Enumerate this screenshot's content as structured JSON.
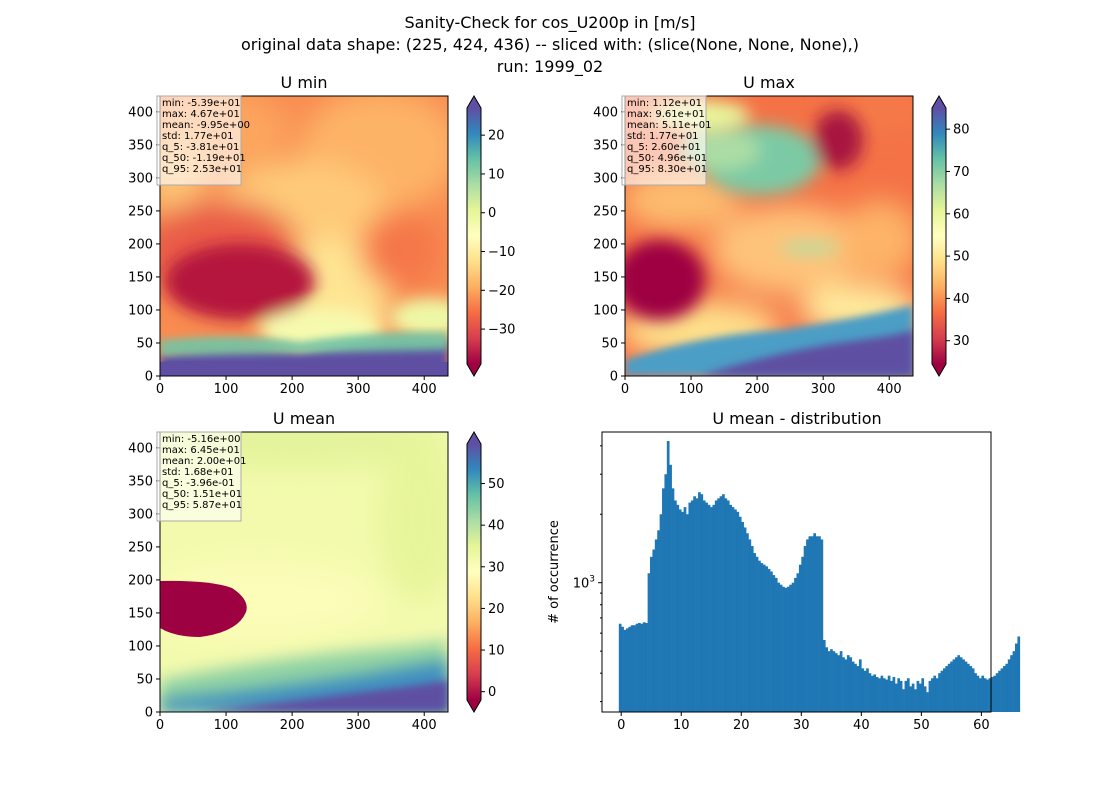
{
  "figure": {
    "suptitle_lines": [
      "Sanity-Check for cos_U200p in [m/s]",
      "original data shape: (225, 424, 436) -- sliced with: (slice(None, None, None),)",
      "run: 1999_02"
    ]
  },
  "chart_data": [
    {
      "type": "heatmap",
      "title": "U min",
      "xlim": [
        0,
        436
      ],
      "ylim": [
        0,
        424
      ],
      "xticks": [
        0,
        100,
        200,
        300,
        400
      ],
      "yticks": [
        0,
        50,
        100,
        150,
        200,
        250,
        300,
        350,
        400
      ],
      "colorbar": {
        "colormap": "Spectral",
        "range": [
          -39,
          27
        ],
        "ticks": [
          -30,
          -20,
          -10,
          0,
          10,
          20
        ],
        "extend": "both"
      },
      "stats": [
        "min: -5.39e+01",
        "max: 4.67e+01",
        "mean: -9.95e+00",
        "std: 1.77e+01",
        "q_5: -3.81e+01",
        "q_50: -1.19e+01",
        "q_95: 2.53e+01"
      ]
    },
    {
      "type": "heatmap",
      "title": "U max",
      "xlim": [
        0,
        436
      ],
      "ylim": [
        0,
        424
      ],
      "xticks": [
        0,
        100,
        200,
        300,
        400
      ],
      "yticks": [
        0,
        50,
        100,
        150,
        200,
        250,
        300,
        350,
        400
      ],
      "colorbar": {
        "colormap": "Spectral",
        "range": [
          24.5,
          85
        ],
        "ticks": [
          30,
          40,
          50,
          60,
          70,
          80
        ],
        "extend": "both"
      },
      "stats": [
        "min: 1.12e+01",
        "max: 9.61e+01",
        "mean: 5.11e+01",
        "std: 1.77e+01",
        "q_5: 2.60e+01",
        "q_50: 4.96e+01",
        "q_95: 8.30e+01"
      ]
    },
    {
      "type": "heatmap",
      "title": "U mean",
      "xlim": [
        0,
        436
      ],
      "ylim": [
        0,
        424
      ],
      "xticks": [
        0,
        100,
        200,
        300,
        400
      ],
      "yticks": [
        0,
        50,
        100,
        150,
        200,
        250,
        300,
        350,
        400
      ],
      "colorbar": {
        "colormap": "Spectral",
        "range": [
          -2,
          59.5
        ],
        "ticks": [
          0,
          10,
          20,
          30,
          40,
          50
        ],
        "extend": "both"
      },
      "stats": [
        "min: -5.16e+00",
        "max: 6.45e+01",
        "mean: 2.00e+01",
        "std: 1.68e+01",
        "q_5: -3.96e-01",
        "q_50: 1.51e+01",
        "q_95: 5.87e+01"
      ]
    },
    {
      "type": "bar",
      "title": "U mean - distribution",
      "xlabel": "",
      "ylabel": "# of occurrence",
      "yscale": "log",
      "xlim": [
        -3.2,
        61.6
      ],
      "ylim": [
        270,
        4600
      ],
      "xticks": [
        0,
        10,
        20,
        30,
        40,
        50,
        60
      ],
      "yticks_major": [
        1000
      ],
      "ytick_labels": [
        "10^3"
      ],
      "bin_width": 0.4,
      "bins_start": -0.4,
      "color": "#1f77b4",
      "values": [
        660,
        640,
        620,
        630,
        640,
        650,
        650,
        660,
        665,
        660,
        670,
        665,
        1100,
        1300,
        1400,
        1550,
        1700,
        2000,
        2600,
        3000,
        4200,
        3300,
        2600,
        2300,
        2200,
        2100,
        2050,
        2150,
        2000,
        2250,
        2300,
        2400,
        2350,
        2500,
        2450,
        2300,
        2250,
        2200,
        2150,
        2200,
        2300,
        2350,
        2400,
        2450,
        2350,
        2300,
        2200,
        2150,
        2100,
        2050,
        1950,
        1850,
        1750,
        1650,
        1550,
        1450,
        1350,
        1300,
        1250,
        1220,
        1200,
        1180,
        1150,
        1120,
        1080,
        1050,
        1000,
        980,
        960,
        950,
        960,
        980,
        1000,
        1050,
        1100,
        1200,
        1300,
        1450,
        1550,
        1600,
        1600,
        1650,
        1600,
        1600,
        1550,
        560,
        520,
        500,
        510,
        500,
        490,
        480,
        500,
        470,
        460,
        480,
        470,
        450,
        440,
        430,
        460,
        420,
        410,
        420,
        400,
        390,
        395,
        385,
        380,
        390,
        380,
        375,
        390,
        370,
        385,
        360,
        380,
        370,
        340,
        370,
        380,
        350,
        360,
        340,
        370,
        360,
        380,
        350,
        330,
        370,
        380,
        390,
        380,
        400,
        410,
        420,
        430,
        440,
        450,
        460,
        470,
        480,
        470,
        460,
        450,
        440,
        430,
        420,
        400,
        390,
        380,
        390,
        380,
        375,
        380,
        385,
        390,
        400,
        410,
        420,
        430,
        440,
        460,
        480,
        500,
        540,
        580
      ]
    }
  ]
}
